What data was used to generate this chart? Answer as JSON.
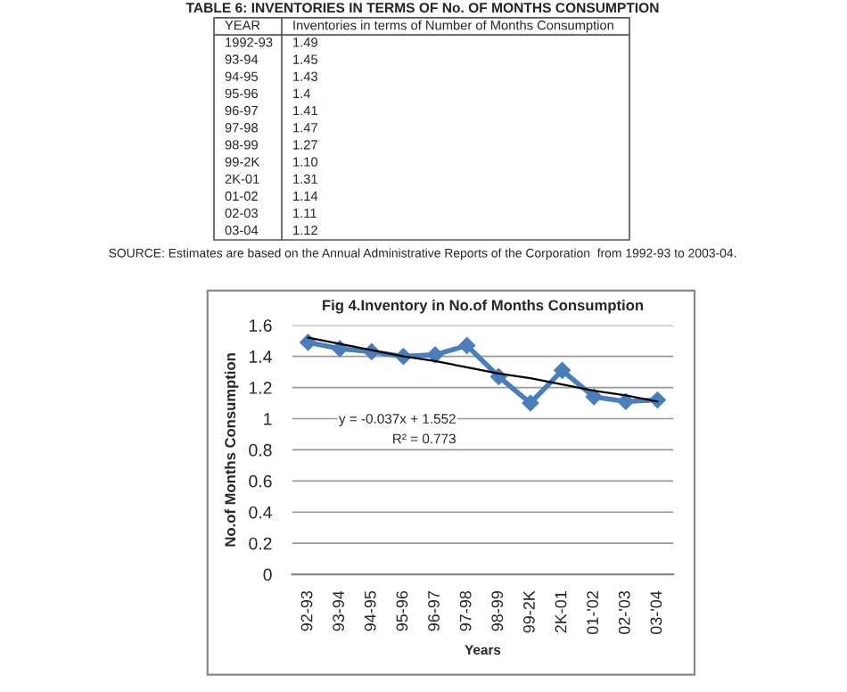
{
  "chart_data": [
    {
      "type": "other",
      "title": "TABLE 6: INVENTORIES IN TERMS OF No. OF MONTHS CONSUMPTION",
      "xlabel": "YEAR",
      "ylabel": "Inventories in terms of Number of Months Consumption",
      "categories": [
        "1992-93",
        "93-94",
        "94-95",
        "95-96",
        "96-97",
        "97-98",
        "98-99",
        "99-2K",
        "2K-01",
        "01-02",
        "02-03",
        "03-04"
      ],
      "value_labels": [
        "1.49",
        "1.45",
        "1.43",
        "1.4",
        "1.41",
        "1.47",
        "1.27",
        "1.10",
        "1.31",
        "1.14",
        "1.11",
        "1.12"
      ],
      "annotations": [
        "SOURCE: Estimates are based on the Annual Administrative Reports of the Corporation  from 1992-93 to 2003-04."
      ]
    },
    {
      "type": "line",
      "title": "Fig 4.Inventory in No.of Months Consumption",
      "xlabel": "Years",
      "ylabel": "No.of Months Consumption",
      "categories": [
        "92-93",
        "93-94",
        "94-95",
        "95-96",
        "96-97",
        "97-98",
        "98-99",
        "99-2K",
        "2K-01",
        "01-'02",
        "02-'03",
        "03-'04"
      ],
      "series": [
        {
          "color": "#4a7ebb",
          "marker": "diamond",
          "values": [
            1.49,
            1.45,
            1.43,
            1.4,
            1.41,
            1.47,
            1.27,
            1.1,
            1.31,
            1.14,
            1.11,
            1.12
          ]
        },
        {
          "color": "#000000",
          "marker": "none",
          "values": [
            1.52,
            1.48,
            1.44,
            1.4,
            1.37,
            1.33,
            1.29,
            1.26,
            1.22,
            1.18,
            1.15,
            1.11
          ]
        }
      ],
      "ylim": [
        0,
        1.6
      ],
      "yticks": [
        0,
        0.2,
        0.4,
        0.6,
        0.8,
        1,
        1.2,
        1.4,
        1.6
      ],
      "grid": "y",
      "annotations": [
        "y = -0.037x + 1.552",
        "R² = 0.773"
      ]
    }
  ]
}
